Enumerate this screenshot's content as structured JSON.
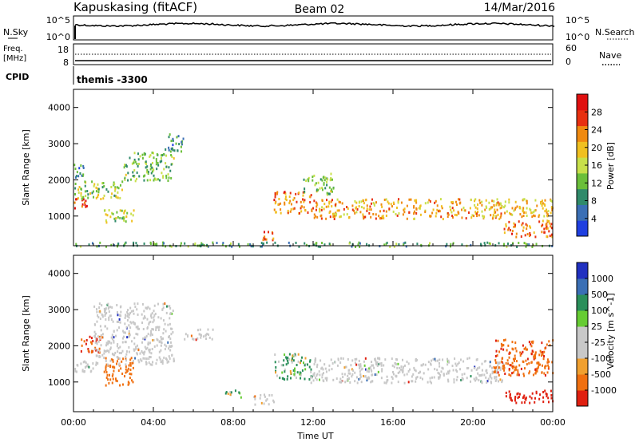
{
  "header": {
    "station": "Kapuskasing (fitACF)",
    "beam": "Beam 02",
    "date": "14/Mar/2016"
  },
  "nsky_panel": {
    "label": "N.Sky",
    "ticks_left": [
      "10^5",
      "10^0"
    ],
    "right_label": "N.Search",
    "ticks_right": [
      "10^5",
      "10^0"
    ]
  },
  "freq_panel": {
    "label_line1": "Freq.",
    "label_line2": "[MHz]",
    "ticks_left": [
      "18",
      "8"
    ],
    "right_label": "Nave",
    "ticks_right": [
      "60",
      "0"
    ]
  },
  "cpid": {
    "label": "CPID",
    "value": "themis -3300"
  },
  "colors": {
    "power_scale": [
      "#1f3fe0",
      "#3a6fb5",
      "#2f8a6a",
      "#6bbf3a",
      "#c8e04a",
      "#f0c020",
      "#f08a10",
      "#e83010",
      "#e01010"
    ],
    "velocity_scale": [
      "#2030c0",
      "#3a6fb5",
      "#2a8f5a",
      "#66cc33",
      "#c8c8c8",
      "#c8c8c8",
      "#f0a030",
      "#f07010",
      "#e02010"
    ]
  },
  "chart_data": [
    {
      "type": "heatmap",
      "title": "",
      "xlabel": "",
      "ylabel": "Slant Range [km]",
      "xlim": [
        0,
        24
      ],
      "ylim": [
        180,
        4500
      ],
      "x_ticks": [
        "00:00",
        "04:00",
        "08:00",
        "12:00",
        "16:00",
        "20:00",
        "00:00"
      ],
      "y_ticks": [
        "1000",
        "2000",
        "3000",
        "4000"
      ],
      "colorbar": {
        "label": "Power [dB]",
        "ticks": [
          "4",
          "8",
          "12",
          "16",
          "20",
          "24",
          "28"
        ],
        "range": [
          0,
          30
        ]
      },
      "scatter_regions": [
        {
          "t": [
            0.0,
            0.8
          ],
          "r": [
            1200,
            1500
          ],
          "level": 26
        },
        {
          "t": [
            0.0,
            2.5
          ],
          "r": [
            1500,
            2000
          ],
          "level": 14
        },
        {
          "t": [
            0.0,
            0.5
          ],
          "r": [
            2000,
            2500
          ],
          "level": 8
        },
        {
          "t": [
            1.5,
            3.0
          ],
          "r": [
            800,
            1200
          ],
          "level": 14
        },
        {
          "t": [
            2.5,
            5.0
          ],
          "r": [
            2000,
            2800
          ],
          "level": 12
        },
        {
          "t": [
            4.5,
            5.5
          ],
          "r": [
            2800,
            3300
          ],
          "level": 8
        },
        {
          "t": [
            9.2,
            10.0
          ],
          "r": [
            350,
            600
          ],
          "level": 24
        },
        {
          "t": [
            10.0,
            12.0
          ],
          "r": [
            1100,
            1700
          ],
          "level": 22
        },
        {
          "t": [
            11.5,
            13.0
          ],
          "r": [
            1600,
            2200
          ],
          "level": 12
        },
        {
          "t": [
            12.0,
            21.5
          ],
          "r": [
            950,
            1500
          ],
          "level": 20
        },
        {
          "t": [
            21.0,
            24.0
          ],
          "r": [
            1000,
            1500
          ],
          "level": 18
        },
        {
          "t": [
            21.5,
            24.0
          ],
          "r": [
            450,
            900
          ],
          "level": 22
        },
        {
          "t": [
            0.0,
            24.0
          ],
          "r": [
            180,
            300
          ],
          "level": 10
        }
      ]
    },
    {
      "type": "heatmap",
      "title": "",
      "xlabel": "Time UT",
      "ylabel": "Slant Range [km]",
      "xlim": [
        0,
        24
      ],
      "ylim": [
        180,
        4500
      ],
      "x_ticks": [
        "00:00",
        "04:00",
        "08:00",
        "12:00",
        "16:00",
        "20:00",
        "00:00"
      ],
      "y_ticks": [
        "1000",
        "2000",
        "3000",
        "4000"
      ],
      "colorbar": {
        "label": "Velocity [m s^-1]",
        "ticks": [
          "1000",
          "500",
          "100",
          "25",
          "-25",
          "-100",
          "-500",
          "-1000"
        ],
        "range": [
          -1000,
          1000
        ]
      },
      "scatter_regions": [
        {
          "t": [
            0.0,
            1.0
          ],
          "r": [
            1200,
            1600
          ],
          "level": "ground"
        },
        {
          "t": [
            0.3,
            1.3
          ],
          "r": [
            1800,
            2300
          ],
          "level": -500
        },
        {
          "t": [
            1.5,
            3.0
          ],
          "r": [
            900,
            1700
          ],
          "level": -300
        },
        {
          "t": [
            1.0,
            5.0
          ],
          "r": [
            1500,
            3200
          ],
          "level": "ground"
        },
        {
          "t": [
            5.5,
            7.0
          ],
          "r": [
            2200,
            2500
          ],
          "level": "ground"
        },
        {
          "t": [
            9.0,
            10.0
          ],
          "r": [
            400,
            700
          ],
          "level": "ground"
        },
        {
          "t": [
            7.5,
            8.5
          ],
          "r": [
            600,
            800
          ],
          "level": 80
        },
        {
          "t": [
            10.0,
            12.0
          ],
          "r": [
            1100,
            1800
          ],
          "level": 100
        },
        {
          "t": [
            11.8,
            21.5
          ],
          "r": [
            1000,
            1700
          ],
          "level": "ground"
        },
        {
          "t": [
            21.0,
            24.0
          ],
          "r": [
            1200,
            2200
          ],
          "level": -400
        },
        {
          "t": [
            21.5,
            24.0
          ],
          "r": [
            450,
            800
          ],
          "level": -700
        }
      ]
    }
  ]
}
